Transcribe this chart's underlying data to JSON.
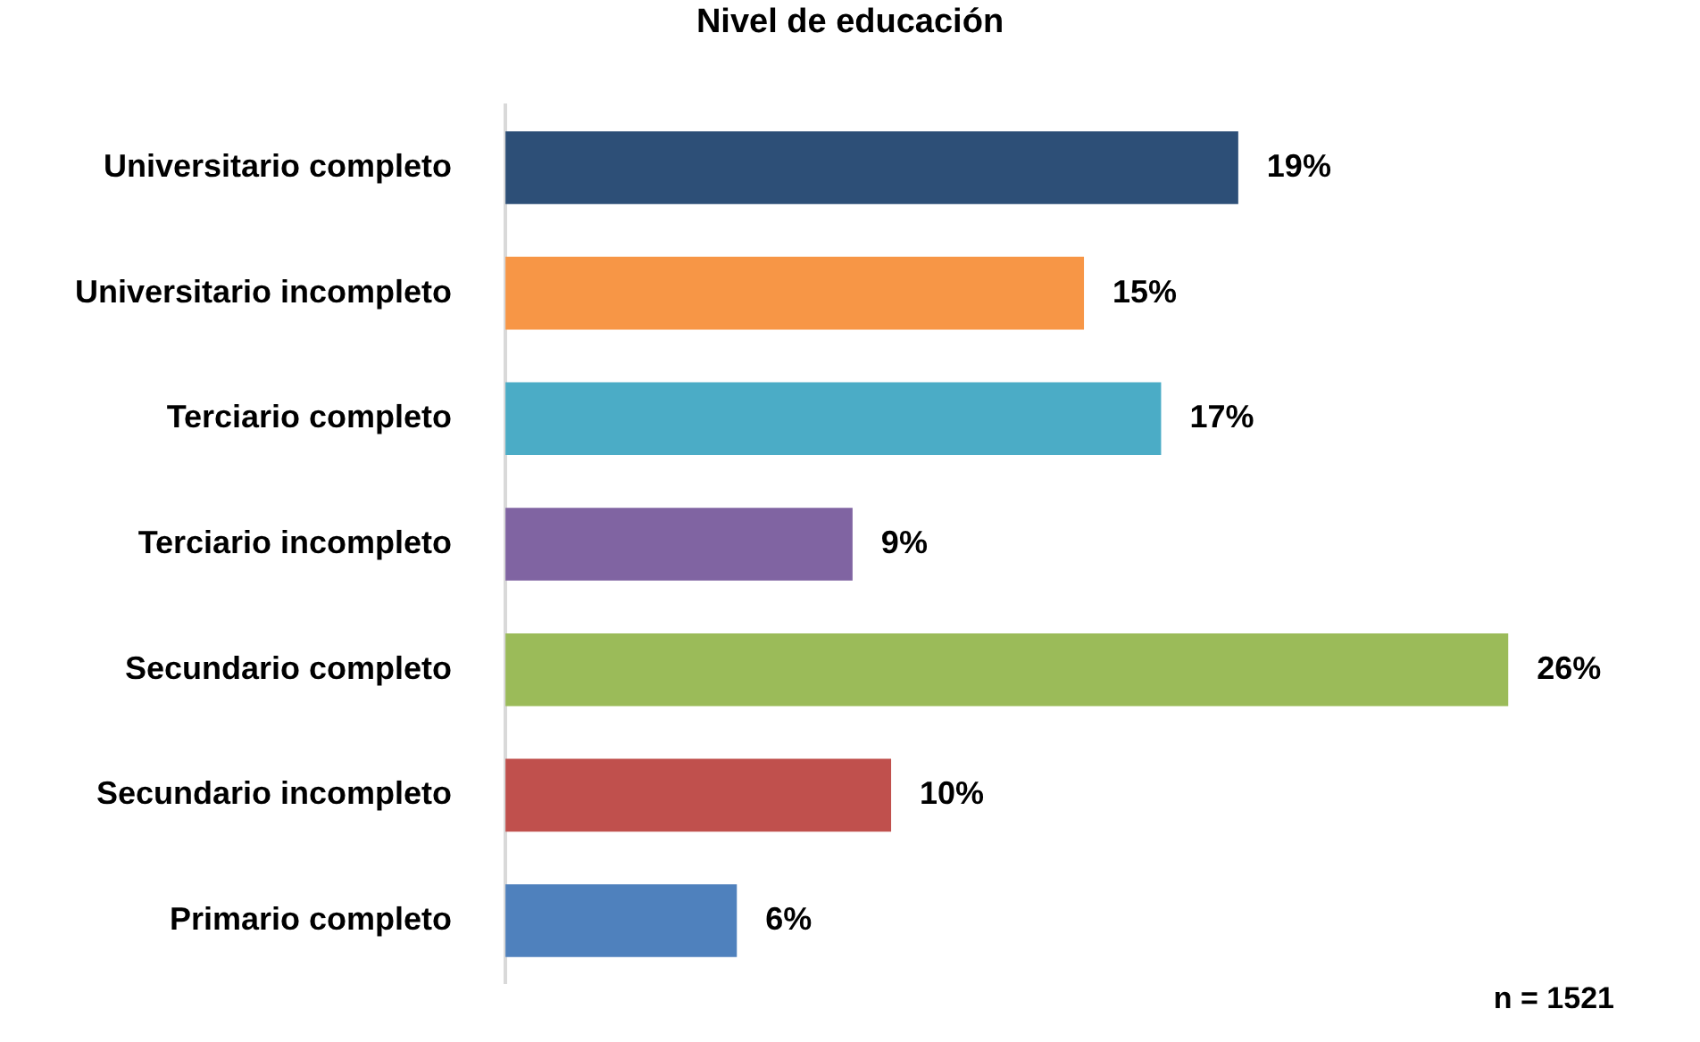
{
  "chart_data": {
    "type": "bar",
    "orientation": "horizontal",
    "title": "Nivel de educación",
    "categories": [
      "Universitario completo",
      "Universitario incompleto",
      "Terciario completo",
      "Terciario incompleto",
      "Secundario completo",
      "Secundario incompleto",
      "Primario completo"
    ],
    "values": [
      19,
      15,
      17,
      9,
      26,
      10,
      6
    ],
    "colors": [
      "#2d4f77",
      "#f79646",
      "#4bacc6",
      "#8064a2",
      "#9bbb59",
      "#c0504d",
      "#4f81bd"
    ],
    "value_labels": [
      "19%",
      "15%",
      "17%",
      "9%",
      "26%",
      "10%",
      "6%"
    ],
    "annotations": [
      "n = 1521"
    ],
    "legend": false
  }
}
